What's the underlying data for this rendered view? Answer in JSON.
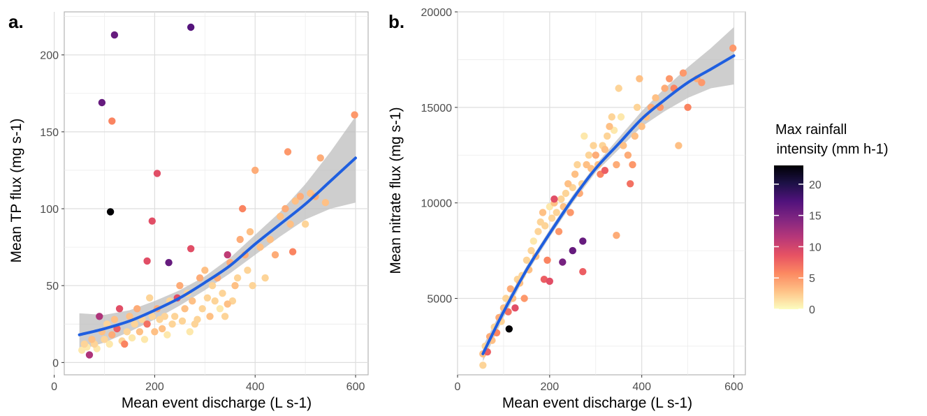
{
  "legend": {
    "title_line1": "Max rainfall",
    "title_line2": " intensity (mm h-1)",
    "ticks": [
      0,
      5,
      10,
      15,
      20
    ],
    "range": [
      0,
      23
    ],
    "colormap": "magma",
    "stops": [
      "#000004",
      "#1d1147",
      "#51127c",
      "#822681",
      "#b73779",
      "#e75263",
      "#fc8961",
      "#fec287",
      "#fcfdbf"
    ]
  },
  "chart_data": [
    {
      "type": "scatter",
      "panel_label": "a.",
      "xlabel": "Mean event discharge (L s-1)",
      "ylabel": "Mean TP flux (mg s-1)",
      "xlim": [
        20,
        625
      ],
      "ylim": [
        -8,
        228
      ],
      "xticks": [
        0,
        200,
        400,
        600
      ],
      "yticks": [
        0,
        50,
        100,
        150,
        200
      ],
      "grid": true,
      "points": [
        [
          55,
          8,
          1
        ],
        [
          60,
          12,
          2
        ],
        [
          65,
          10,
          1
        ],
        [
          70,
          5,
          12
        ],
        [
          75,
          15,
          3
        ],
        [
          80,
          12,
          2
        ],
        [
          85,
          9,
          1
        ],
        [
          90,
          30,
          12
        ],
        [
          95,
          20,
          3
        ],
        [
          100,
          15,
          2
        ],
        [
          105,
          25,
          2
        ],
        [
          110,
          12,
          1
        ],
        [
          115,
          18,
          4
        ],
        [
          120,
          28,
          3
        ],
        [
          125,
          22,
          8
        ],
        [
          130,
          35,
          9
        ],
        [
          135,
          14,
          2
        ],
        [
          140,
          12,
          6
        ],
        [
          145,
          20,
          2
        ],
        [
          150,
          30,
          3
        ],
        [
          155,
          16,
          1
        ],
        [
          160,
          25,
          2
        ],
        [
          165,
          35,
          4
        ],
        [
          170,
          20,
          3
        ],
        [
          175,
          28,
          2
        ],
        [
          180,
          15,
          1
        ],
        [
          185,
          25,
          7
        ],
        [
          190,
          42,
          2
        ],
        [
          195,
          30,
          2
        ],
        [
          200,
          20,
          3
        ],
        [
          205,
          35,
          4
        ],
        [
          210,
          28,
          2
        ],
        [
          215,
          22,
          3
        ],
        [
          220,
          30,
          2
        ],
        [
          225,
          18,
          1
        ],
        [
          230,
          40,
          2
        ],
        [
          235,
          25,
          2
        ],
        [
          240,
          30,
          2
        ],
        [
          245,
          42,
          9
        ],
        [
          250,
          50,
          4
        ],
        [
          255,
          27,
          2
        ],
        [
          260,
          35,
          3
        ],
        [
          265,
          45,
          2
        ],
        [
          270,
          20,
          1
        ],
        [
          275,
          40,
          3
        ],
        [
          280,
          25,
          2
        ],
        [
          285,
          28,
          2
        ],
        [
          290,
          55,
          4
        ],
        [
          295,
          35,
          2
        ],
        [
          300,
          60,
          3
        ],
        [
          305,
          42,
          2
        ],
        [
          310,
          30,
          3
        ],
        [
          315,
          50,
          2
        ],
        [
          320,
          40,
          2
        ],
        [
          325,
          55,
          4
        ],
        [
          330,
          35,
          1
        ],
        [
          335,
          45,
          2
        ],
        [
          340,
          30,
          2
        ],
        [
          345,
          38,
          3
        ],
        [
          350,
          65,
          4
        ],
        [
          355,
          40,
          2
        ],
        [
          360,
          50,
          3
        ],
        [
          365,
          55,
          2
        ],
        [
          370,
          80,
          4
        ],
        [
          375,
          100,
          6
        ],
        [
          380,
          70,
          4
        ],
        [
          385,
          60,
          2
        ],
        [
          390,
          85,
          3
        ],
        [
          395,
          50,
          2
        ],
        [
          400,
          125,
          4
        ],
        [
          410,
          75,
          3
        ],
        [
          420,
          55,
          2
        ],
        [
          430,
          80,
          3
        ],
        [
          440,
          70,
          4
        ],
        [
          450,
          95,
          3
        ],
        [
          460,
          100,
          4
        ],
        [
          465,
          137,
          5
        ],
        [
          470,
          90,
          3
        ],
        [
          475,
          72,
          6
        ],
        [
          480,
          105,
          3
        ],
        [
          490,
          108,
          4
        ],
        [
          500,
          90,
          2
        ],
        [
          510,
          110,
          3
        ],
        [
          520,
          108,
          4
        ],
        [
          530,
          133,
          4
        ],
        [
          540,
          104,
          3
        ],
        [
          598,
          161,
          5
        ],
        [
          95,
          169,
          16
        ],
        [
          120,
          213,
          16
        ],
        [
          272,
          218,
          17
        ],
        [
          112,
          98,
          23
        ],
        [
          115,
          157,
          6
        ],
        [
          205,
          123,
          9
        ],
        [
          195,
          92,
          9
        ],
        [
          185,
          66,
          9
        ],
        [
          228,
          65,
          16
        ],
        [
          272,
          74,
          9
        ],
        [
          345,
          70,
          11
        ]
      ],
      "fit": {
        "x": [
          50,
          100,
          150,
          200,
          250,
          300,
          350,
          400,
          450,
          500,
          550,
          600
        ],
        "y": [
          18,
          22,
          27,
          34,
          42,
          52,
          63,
          77,
          90,
          103,
          118,
          133
        ],
        "upper": [
          32,
          31,
          34,
          40,
          47,
          56,
          68,
          83,
          98,
          116,
          137,
          160
        ],
        "lower": [
          8,
          13,
          20,
          28,
          37,
          47,
          58,
          70,
          82,
          93,
          100,
          104
        ],
        "color": "#1f5fe0",
        "band_color": "#bdbdbd"
      }
    },
    {
      "type": "scatter",
      "panel_label": "b.",
      "xlabel": "Mean event discharge (L s-1)",
      "ylabel": "Mean nitrate flux (mg s-1)",
      "xlim": [
        0,
        625
      ],
      "ylim": [
        1000,
        20000
      ],
      "xticks": [
        0,
        200,
        400,
        600
      ],
      "yticks": [
        5000,
        10000,
        15000,
        20000
      ],
      "grid": true,
      "points": [
        [
          55,
          1500,
          2
        ],
        [
          55,
          2100,
          3
        ],
        [
          60,
          2500,
          2
        ],
        [
          65,
          2200,
          8
        ],
        [
          70,
          3000,
          4
        ],
        [
          75,
          2800,
          3
        ],
        [
          80,
          3500,
          2
        ],
        [
          85,
          3200,
          6
        ],
        [
          90,
          4000,
          4
        ],
        [
          95,
          3800,
          2
        ],
        [
          100,
          4500,
          3
        ],
        [
          105,
          5000,
          2
        ],
        [
          110,
          4300,
          7
        ],
        [
          115,
          5500,
          4
        ],
        [
          120,
          5000,
          3
        ],
        [
          125,
          4500,
          9
        ],
        [
          130,
          6000,
          2
        ],
        [
          135,
          5800,
          3
        ],
        [
          140,
          6200,
          2
        ],
        [
          145,
          5000,
          5
        ],
        [
          150,
          7000,
          2
        ],
        [
          155,
          6500,
          3
        ],
        [
          160,
          7500,
          2
        ],
        [
          165,
          8000,
          1
        ],
        [
          170,
          7200,
          3
        ],
        [
          175,
          8500,
          2
        ],
        [
          180,
          9000,
          2
        ],
        [
          185,
          9500,
          3
        ],
        [
          190,
          8800,
          2
        ],
        [
          195,
          7000,
          6
        ],
        [
          200,
          9800,
          1
        ],
        [
          205,
          9200,
          2
        ],
        [
          210,
          10000,
          3
        ],
        [
          215,
          9500,
          2
        ],
        [
          220,
          8500,
          5
        ],
        [
          225,
          10200,
          2
        ],
        [
          230,
          9800,
          3
        ],
        [
          235,
          10500,
          2
        ],
        [
          240,
          11000,
          3
        ],
        [
          245,
          9500,
          5
        ],
        [
          250,
          10800,
          2
        ],
        [
          255,
          11500,
          3
        ],
        [
          260,
          12000,
          2
        ],
        [
          265,
          10500,
          4
        ],
        [
          270,
          11000,
          2
        ],
        [
          275,
          13500,
          1
        ],
        [
          280,
          12000,
          3
        ],
        [
          285,
          12500,
          2
        ],
        [
          290,
          11800,
          3
        ],
        [
          295,
          13000,
          2
        ],
        [
          300,
          12500,
          4
        ],
        [
          305,
          12000,
          3
        ],
        [
          310,
          11500,
          6
        ],
        [
          315,
          13000,
          2
        ],
        [
          320,
          12800,
          3
        ],
        [
          325,
          13500,
          2
        ],
        [
          330,
          14000,
          3
        ],
        [
          335,
          14500,
          2
        ],
        [
          340,
          13800,
          1
        ],
        [
          345,
          12000,
          4
        ],
        [
          350,
          16000,
          2
        ],
        [
          355,
          14500,
          1
        ],
        [
          360,
          13000,
          3
        ],
        [
          370,
          12500,
          4
        ],
        [
          375,
          11000,
          7
        ],
        [
          380,
          12000,
          5
        ],
        [
          385,
          13500,
          3
        ],
        [
          390,
          15000,
          2
        ],
        [
          395,
          16500,
          3
        ],
        [
          400,
          14000,
          3
        ],
        [
          410,
          14500,
          3
        ],
        [
          420,
          15000,
          4
        ],
        [
          430,
          15500,
          3
        ],
        [
          440,
          15000,
          5
        ],
        [
          450,
          16000,
          4
        ],
        [
          460,
          16500,
          5
        ],
        [
          470,
          16000,
          6
        ],
        [
          480,
          13000,
          3
        ],
        [
          490,
          16800,
          5
        ],
        [
          500,
          15000,
          6
        ],
        [
          520,
          16500,
          4
        ],
        [
          530,
          16300,
          5
        ],
        [
          598,
          18100,
          5
        ],
        [
          112,
          3400,
          23
        ],
        [
          228,
          6900,
          15
        ],
        [
          250,
          7500,
          16
        ],
        [
          272,
          8000,
          16
        ],
        [
          272,
          6400,
          8
        ],
        [
          200,
          5900,
          9
        ],
        [
          320,
          11700,
          8
        ],
        [
          345,
          8300,
          4
        ],
        [
          188,
          6000,
          8
        ],
        [
          210,
          10200,
          9
        ]
      ],
      "fit": {
        "x": [
          55,
          100,
          150,
          200,
          250,
          300,
          350,
          400,
          450,
          500,
          550,
          600
        ],
        "y": [
          2100,
          4300,
          6500,
          8400,
          10200,
          11800,
          13100,
          14400,
          15400,
          16300,
          17000,
          17700
        ],
        "upper": [
          2500,
          4600,
          6700,
          8600,
          10400,
          12000,
          13400,
          14800,
          16000,
          17100,
          18100,
          19200
        ],
        "lower": [
          1700,
          4000,
          6300,
          8200,
          10000,
          11600,
          12800,
          14000,
          14800,
          15500,
          16000,
          16200
        ],
        "color": "#1f5fe0",
        "band_color": "#bdbdbd"
      }
    }
  ]
}
